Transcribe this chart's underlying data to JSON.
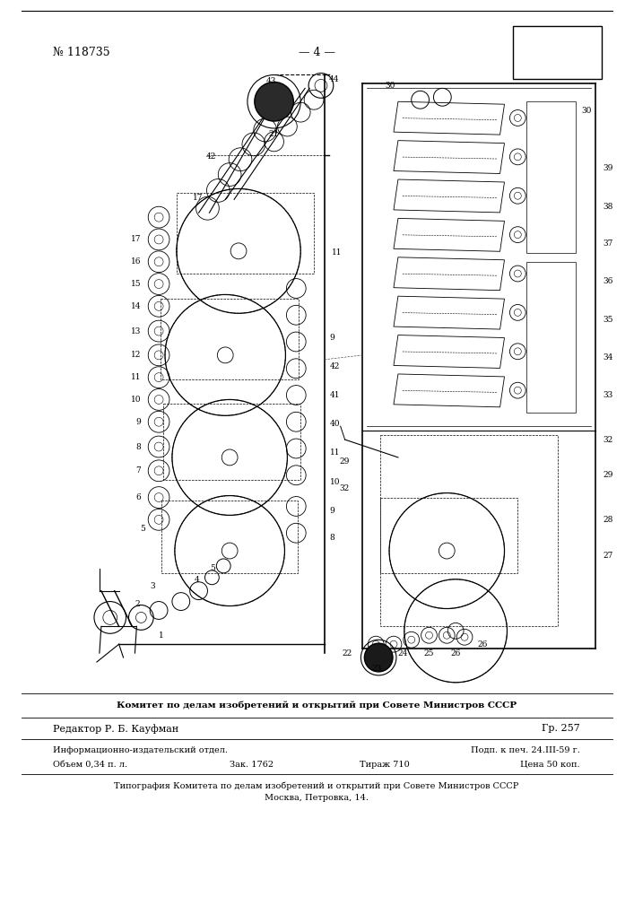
{
  "page_bg": "#ffffff",
  "header_left": "№ 118735",
  "header_center": "— 4 —",
  "footer_bold": "Комитет по делам изобретений и открытий при Совете Министров СССР",
  "editor_left": "Редактор Р. Б. Кауфман",
  "editor_right": "Гр. 257",
  "info_left": "Информационно-издательский отдел.",
  "info_right": "Подп. к печ. 24.III-59 г.",
  "vol_col1": "Объем 0,34 п. л.",
  "vol_col2": "Зак. 1762",
  "vol_col3": "Тираж 710",
  "vol_col4": "Цена 50 коп.",
  "typo1": "Типография Комитета по делам изобретений и открытий при Совете Министров СССР",
  "typo2": "Москва, Петровка, 14.",
  "text_color": "#000000",
  "line_color": "#000000"
}
